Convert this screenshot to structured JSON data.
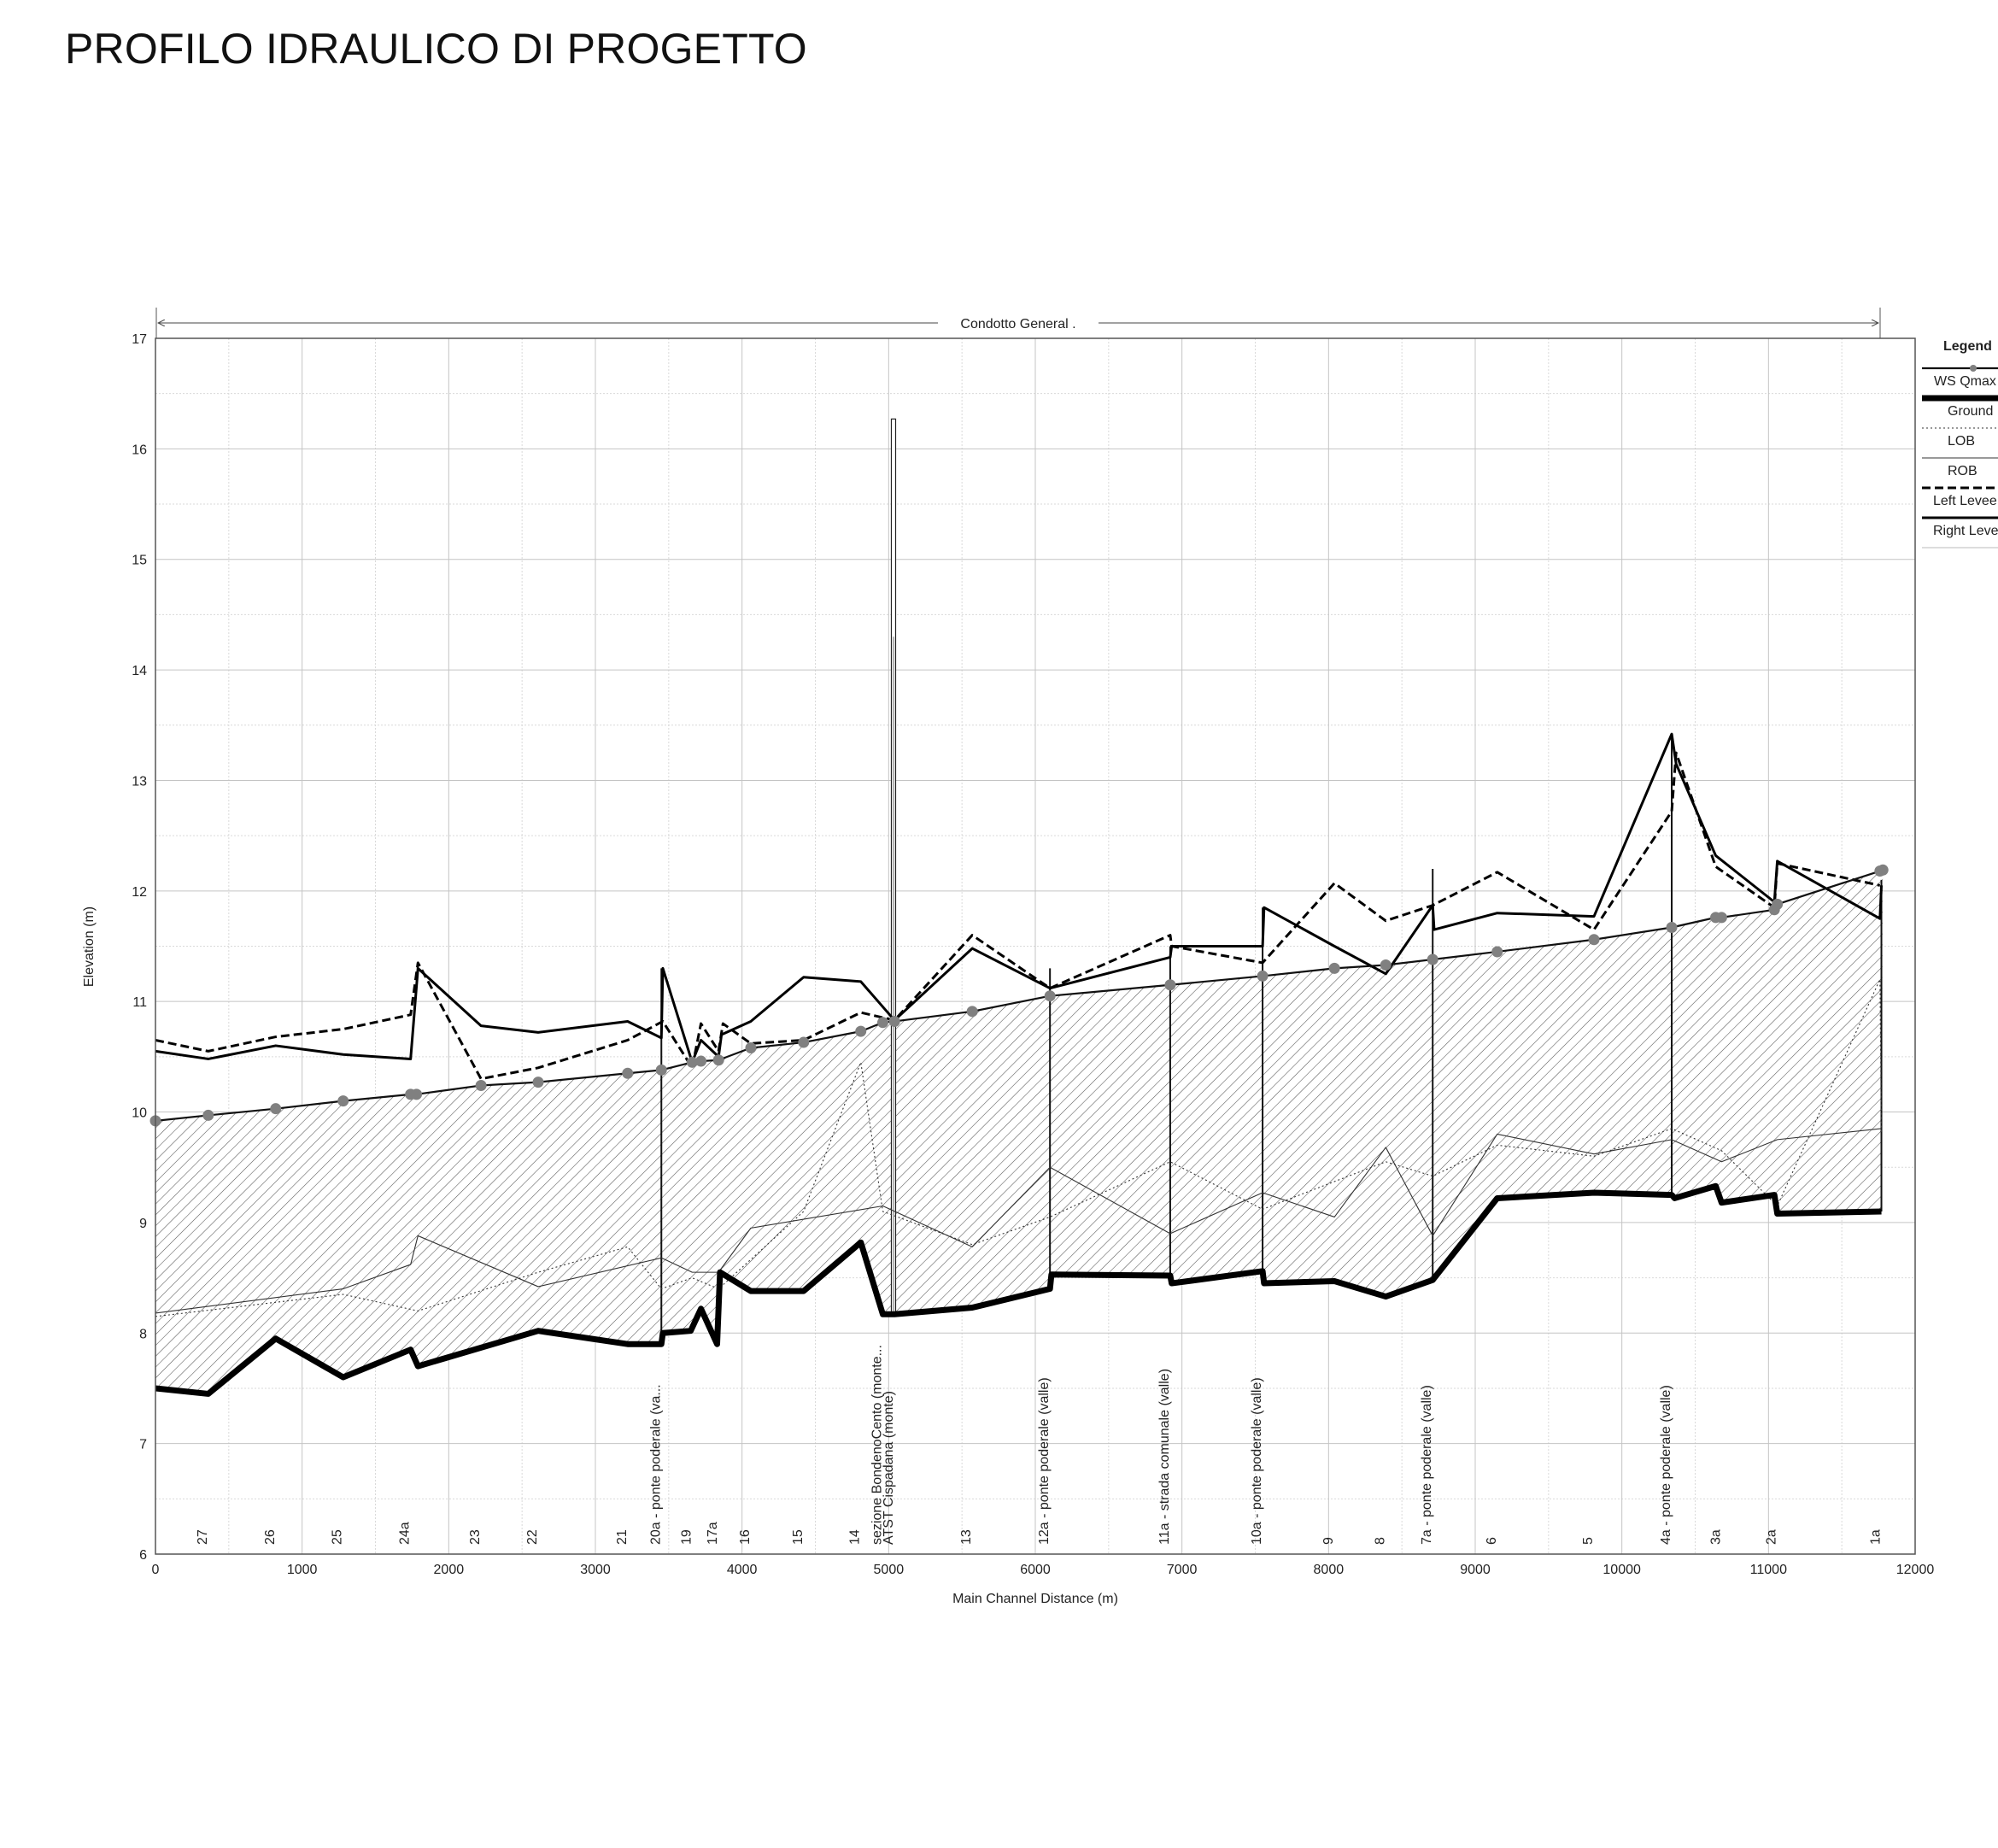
{
  "title": "PROFILO IDRAULICO DI PROGETTO",
  "chart_data": {
    "type": "line",
    "reach_label": "Condotto General .",
    "xlabel": "Main Channel Distance (m)",
    "ylabel": "Elevation (m)",
    "xlim": [
      0,
      12000
    ],
    "ylim": [
      6,
      17
    ],
    "x_ticks": [
      "0",
      "1000",
      "2000",
      "3000",
      "4000",
      "5000",
      "6000",
      "7000",
      "8000",
      "9000",
      "10000",
      "11000",
      "12000"
    ],
    "y_ticks": [
      "6",
      "7",
      "8",
      "9",
      "10",
      "11",
      "12",
      "13",
      "14",
      "15",
      "16",
      "17"
    ],
    "grid": true,
    "reach_extent": [
      0,
      11770
    ],
    "legend": {
      "placement": "right",
      "title": "Legend",
      "entries": [
        "WS  Qmax",
        "Ground",
        "LOB",
        "ROB",
        "Left Levee",
        "Right Levee"
      ]
    },
    "series": [
      {
        "name": "WS  Qmax",
        "style": "marker-line",
        "x": [
          0,
          360,
          820,
          1280,
          1740,
          1780,
          2220,
          2610,
          3220,
          3450,
          3660,
          3720,
          3840,
          4060,
          4420,
          4810,
          4960,
          5040,
          5570,
          6100,
          6920,
          7550,
          8040,
          8390,
          8710,
          9150,
          9810,
          10340,
          10640,
          10680,
          11040,
          11060,
          11760,
          11780
        ],
        "y": [
          9.92,
          9.97,
          10.03,
          10.1,
          10.16,
          10.16,
          10.24,
          10.27,
          10.35,
          10.38,
          10.45,
          10.46,
          10.47,
          10.58,
          10.63,
          10.73,
          10.81,
          10.82,
          10.91,
          11.05,
          11.15,
          11.23,
          11.3,
          11.33,
          11.38,
          11.45,
          11.56,
          11.67,
          11.76,
          11.76,
          11.83,
          11.88,
          12.18,
          12.19
        ]
      },
      {
        "name": "Ground",
        "style": "thick",
        "x": [
          0,
          360,
          820,
          1280,
          1740,
          1790,
          2610,
          3220,
          3450,
          3460,
          3650,
          3720,
          3830,
          3850,
          4060,
          4420,
          4810,
          4960,
          5040,
          5570,
          6100,
          6110,
          6920,
          6930,
          7550,
          7560,
          8040,
          8390,
          8710,
          9150,
          9810,
          10340,
          10360,
          10640,
          10680,
          11040,
          11060,
          11770
        ],
        "y": [
          7.5,
          7.45,
          7.95,
          7.6,
          7.85,
          7.7,
          8.02,
          7.9,
          7.9,
          8.0,
          8.02,
          8.22,
          7.9,
          8.55,
          8.38,
          8.38,
          8.82,
          8.17,
          8.17,
          8.23,
          8.4,
          8.53,
          8.52,
          8.45,
          8.56,
          8.45,
          8.47,
          8.33,
          8.48,
          9.22,
          9.27,
          9.25,
          9.22,
          9.33,
          9.18,
          9.25,
          9.08,
          9.1
        ]
      },
      {
        "name": "LOB",
        "style": "thin-dotted",
        "x": [
          0,
          1280,
          1790,
          2610,
          3220,
          3450,
          3660,
          3840,
          4420,
          4810,
          4960,
          5570,
          6100,
          6920,
          7550,
          8390,
          8710,
          9150,
          9810,
          10340,
          10680,
          11060,
          11760,
          11770
        ],
        "y": [
          8.15,
          8.35,
          8.2,
          8.55,
          8.78,
          8.4,
          8.5,
          8.4,
          9.1,
          10.45,
          9.1,
          8.8,
          9.05,
          9.55,
          9.12,
          9.55,
          9.42,
          9.7,
          9.6,
          9.85,
          9.65,
          9.15,
          11.2,
          9.8
        ]
      },
      {
        "name": "ROB",
        "style": "thin",
        "x": [
          0,
          1280,
          1740,
          1790,
          2610,
          3450,
          3660,
          3840,
          4060,
          4960,
          5570,
          6100,
          6920,
          7550,
          8040,
          8390,
          8710,
          9150,
          9810,
          10340,
          10680,
          11060,
          11770
        ],
        "y": [
          8.18,
          8.4,
          8.62,
          8.88,
          8.42,
          8.68,
          8.55,
          8.55,
          8.95,
          9.15,
          8.78,
          9.5,
          8.9,
          9.27,
          9.05,
          9.68,
          8.88,
          9.8,
          9.62,
          9.75,
          9.55,
          9.75,
          9.85
        ]
      },
      {
        "name": "Left Levee",
        "style": "dashed",
        "x": [
          0,
          360,
          820,
          1280,
          1740,
          1790,
          2220,
          2610,
          3220,
          3460,
          3660,
          3720,
          3840,
          3870,
          4060,
          4420,
          4810,
          5040,
          5570,
          6100,
          6920,
          6930,
          7550,
          8040,
          8390,
          8710,
          9150,
          9810,
          10340,
          10370,
          10640,
          11040,
          11060,
          11760
        ],
        "y": [
          10.65,
          10.55,
          10.68,
          10.75,
          10.88,
          11.35,
          10.3,
          10.4,
          10.65,
          10.82,
          10.4,
          10.8,
          10.55,
          10.8,
          10.62,
          10.65,
          10.9,
          10.83,
          11.6,
          11.12,
          11.6,
          11.5,
          11.35,
          12.07,
          11.73,
          11.87,
          12.17,
          11.65,
          12.72,
          13.25,
          12.22,
          11.85,
          12.25,
          12.05
        ]
      },
      {
        "name": "Right Levee",
        "style": "solid",
        "x": [
          0,
          360,
          820,
          1280,
          1740,
          1790,
          2220,
          2610,
          3220,
          3450,
          3460,
          3660,
          3720,
          3840,
          3860,
          4060,
          4420,
          4810,
          5040,
          5570,
          6100,
          6920,
          6930,
          7550,
          7560,
          8040,
          8390,
          8710,
          8720,
          9150,
          9810,
          10340,
          10370,
          10640,
          11040,
          11060,
          11760,
          11770
        ],
        "y": [
          10.55,
          10.48,
          10.6,
          10.52,
          10.48,
          11.3,
          10.78,
          10.72,
          10.82,
          10.67,
          11.3,
          10.45,
          10.65,
          10.5,
          10.7,
          10.82,
          11.22,
          11.18,
          10.83,
          11.48,
          11.12,
          11.4,
          11.5,
          11.5,
          11.85,
          11.5,
          11.25,
          11.87,
          11.65,
          11.8,
          11.77,
          13.42,
          13.15,
          12.32,
          11.9,
          12.27,
          11.75,
          12.05
        ]
      }
    ],
    "structures": [
      {
        "x": 3450,
        "top": 11.3
      },
      {
        "x": 6100,
        "top": 11.3
      },
      {
        "x": 6920,
        "top": 11.5
      },
      {
        "x": 7550,
        "top": 11.85
      },
      {
        "x": 8710,
        "top": 12.2
      },
      {
        "x": 10340,
        "top": 13.42
      },
      {
        "x": 11770,
        "top": 12.1
      }
    ],
    "tall_structure": {
      "x": 5030,
      "top": 16.27,
      "inner_top": 14.3
    },
    "stations": [
      {
        "x": 360,
        "label": "27"
      },
      {
        "x": 820,
        "label": "26"
      },
      {
        "x": 1280,
        "label": "25"
      },
      {
        "x": 1740,
        "label": "24a"
      },
      {
        "x": 2220,
        "label": "23"
      },
      {
        "x": 2610,
        "label": "22"
      },
      {
        "x": 3220,
        "label": "21"
      },
      {
        "x": 3450,
        "label": "20a - ponte poderale (va..."
      },
      {
        "x": 3660,
        "label": "19"
      },
      {
        "x": 3840,
        "label": "17a"
      },
      {
        "x": 4060,
        "label": "16"
      },
      {
        "x": 4420,
        "label": "15"
      },
      {
        "x": 4810,
        "label": "14"
      },
      {
        "x": 4960,
        "label": "sezione BondenoCento (monte..."
      },
      {
        "x": 5040,
        "label": "ATST Cispadana (monte)"
      },
      {
        "x": 5570,
        "label": "13"
      },
      {
        "x": 6100,
        "label": "12a - ponte poderale (valle)"
      },
      {
        "x": 6920,
        "label": "11a - strada comunale (valle)"
      },
      {
        "x": 7550,
        "label": "10a - ponte poderale (valle)"
      },
      {
        "x": 8040,
        "label": "9"
      },
      {
        "x": 8390,
        "label": "8"
      },
      {
        "x": 8710,
        "label": "7a - ponte poderale (valle)"
      },
      {
        "x": 9150,
        "label": "6"
      },
      {
        "x": 9810,
        "label": "5"
      },
      {
        "x": 10340,
        "label": "4a - ponte poderale (valle)"
      },
      {
        "x": 10680,
        "label": "3a"
      },
      {
        "x": 11060,
        "label": "2a"
      },
      {
        "x": 11770,
        "label": "1a"
      }
    ]
  }
}
